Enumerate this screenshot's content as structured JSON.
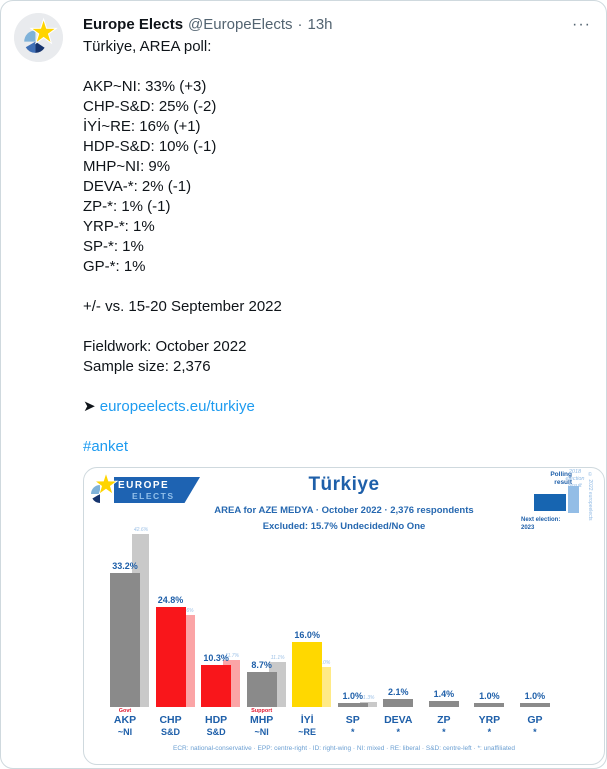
{
  "icons": {
    "more": "···"
  },
  "tweet": {
    "author": "Europe Elects",
    "handle": "@EuropeElects",
    "separator": "·",
    "time": "13h",
    "intro": "Türkiye, AREA poll:",
    "poll_lines": [
      "AKP~NI: 33% (+3)",
      "CHP-S&D: 25% (-2)",
      "İYİ~RE: 16% (+1)",
      "HDP-S&D: 10% (-1)",
      "MHP~NI: 9%",
      "DEVA-*: 2% (-1)",
      "ZP-*: 1% (-1)",
      "YRP-*: 1%",
      "SP-*: 1%",
      "GP-*: 1%"
    ],
    "comparison": "+/- vs. 15-20 September 2022",
    "fieldwork": "Fieldwork: October 2022",
    "sample_size": "Sample size: 2,376",
    "link_arrow": "➤",
    "link_text": "europeelects.eu/turkiye",
    "hashtag": "#anket",
    "accent_color": "#1d9bf0"
  },
  "chart": {
    "logo_line1": "EUROPE",
    "logo_line2": "ELECTS",
    "title": "Türkiye",
    "subtitle": "AREA for AZE MEDYA · October 2022 · 2,376 respondents",
    "note": "Excluded: 15.7% Undecided/No One",
    "legend_polling": "Polling result",
    "legend_election": "2018 election result",
    "legend_next": "Next election:",
    "legend_next_year": "2023",
    "copyright": "© 2022 europeelects",
    "footer": "ECR: national-conservative · EPP: centre-right · ID: right-wing · NI: mixed · RE: liberal · S&D: centre-left · *: unaffiliated",
    "colors": {
      "europe_elects_blue": "#1e5fa9",
      "light_blue": "#93bde6",
      "gray_bar": "#8a8a8a",
      "light_gray_bar": "#c9c9c9",
      "red_bar": "#f9161b",
      "light_red_bar": "#fba4a6",
      "yellow_bar": "#ffd800",
      "light_yellow_bar": "#ffea86",
      "tag_red": "#e11931"
    },
    "parties": [
      {
        "name": "AKP",
        "group": "~NI",
        "tag": "Govt",
        "value_label": "33.2%",
        "prev_label": "42.6%",
        "color": "#8a8a8a",
        "prev_color": "#c9c9c9"
      },
      {
        "name": "CHP",
        "group": "S&D",
        "tag": "",
        "value_label": "24.8%",
        "prev_label": "22.6%",
        "color": "#f9161b",
        "prev_color": "#fba4a6"
      },
      {
        "name": "HDP",
        "group": "S&D",
        "tag": "",
        "value_label": "10.3%",
        "prev_label": "11.7%",
        "color": "#f9161b",
        "prev_color": "#fba4a6"
      },
      {
        "name": "MHP",
        "group": "~NI",
        "tag": "Support",
        "value_label": "8.7%",
        "prev_label": "11.1%",
        "color": "#8a8a8a",
        "prev_color": "#c9c9c9"
      },
      {
        "name": "İYİ",
        "group": "~RE",
        "tag": "",
        "value_label": "16.0%",
        "prev_label": "10.0%",
        "color": "#ffd800",
        "prev_color": "#ffea86"
      },
      {
        "name": "SP",
        "group": "*",
        "tag": "",
        "value_label": "1.0%",
        "prev_label": "1.3%",
        "color": "#8a8a8a",
        "prev_color": "#c9c9c9"
      },
      {
        "name": "DEVA",
        "group": "*",
        "tag": "",
        "value_label": "2.1%",
        "prev_label": null,
        "color": "#8a8a8a",
        "prev_color": null
      },
      {
        "name": "ZP",
        "group": "*",
        "tag": "",
        "value_label": "1.4%",
        "prev_label": null,
        "color": "#8a8a8a",
        "prev_color": null
      },
      {
        "name": "YRP",
        "group": "*",
        "tag": "",
        "value_label": "1.0%",
        "prev_label": null,
        "color": "#8a8a8a",
        "prev_color": null
      },
      {
        "name": "GP",
        "group": "*",
        "tag": "",
        "value_label": "1.0%",
        "prev_label": null,
        "color": "#8a8a8a",
        "prev_color": null
      }
    ]
  },
  "chart_data": {
    "type": "bar",
    "title": "Türkiye",
    "subtitle": "AREA for AZE MEDYA · October 2022 · 2,376 respondents",
    "note": "Excluded: 15.7% Undecided/No One",
    "categories": [
      "AKP ~NI",
      "CHP S&D",
      "HDP S&D",
      "MHP ~NI",
      "İYİ ~RE",
      "SP *",
      "DEVA *",
      "ZP *",
      "YRP *",
      "GP *"
    ],
    "series": [
      {
        "name": "Polling result",
        "values": [
          33.2,
          24.8,
          10.3,
          8.7,
          16.0,
          1.0,
          2.1,
          1.4,
          1.0,
          1.0
        ]
      },
      {
        "name": "2018 election result",
        "values": [
          42.6,
          22.6,
          11.7,
          11.1,
          10.0,
          1.3,
          null,
          null,
          null,
          null
        ]
      }
    ],
    "ylim": [
      0,
      45
    ],
    "grid": false,
    "legend_position": "top-right",
    "annotations": [
      {
        "category": "AKP ~NI",
        "label": "Govt"
      },
      {
        "category": "MHP ~NI",
        "label": "Support"
      }
    ],
    "xlabel": "",
    "ylabel": ""
  }
}
